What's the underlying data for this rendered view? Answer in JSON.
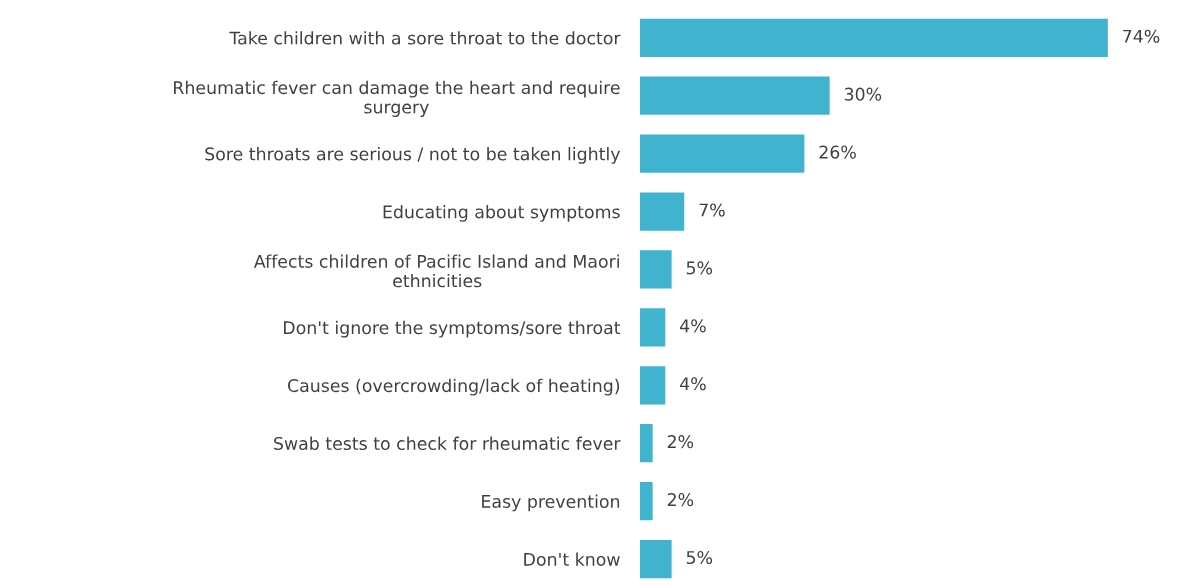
{
  "chart_data": {
    "type": "bar",
    "orientation": "horizontal",
    "categories": [
      "Take children with a sore throat to the doctor",
      "Rheumatic fever can damage the heart and require\nsurgery",
      "Sore throats are serious / not to be taken lightly",
      "Educating about symptoms",
      "Affects children of Pacific Island and Maori\nethnicities",
      "Don't ignore the symptoms/sore throat",
      "Causes (overcrowding/lack of heating)",
      "Swab tests to check for rheumatic fever",
      "Easy prevention",
      "Don't know"
    ],
    "values": [
      74,
      30,
      26,
      7,
      5,
      4,
      4,
      2,
      2,
      5
    ],
    "value_labels": [
      "74%",
      "30%",
      "26%",
      "7%",
      "5%",
      "4%",
      "4%",
      "2%",
      "2%",
      "5%"
    ],
    "color": "#40b3cf",
    "grid": false,
    "legend": false,
    "tick_labels": "y"
  }
}
